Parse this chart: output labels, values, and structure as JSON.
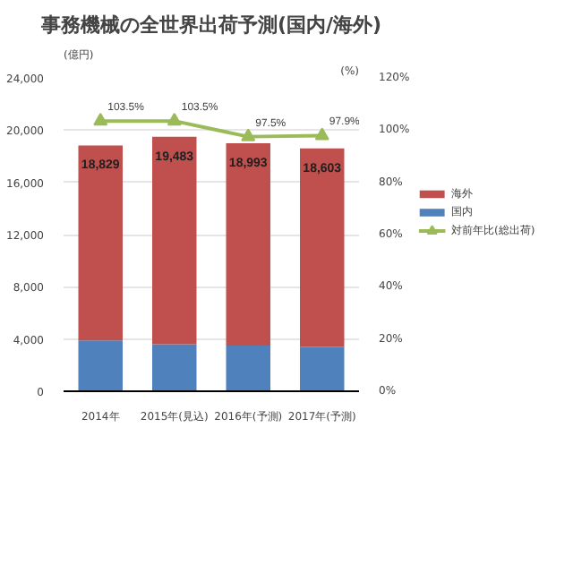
{
  "chart_data": {
    "type": "bar",
    "stacked": true,
    "title": "事務機械の全世界出荷予測(国内/海外)",
    "ylabel": "(億円)",
    "y2label": "(%)",
    "categories": [
      "2014年",
      "2015年(見込)",
      "2016年(予測)",
      "2017年(予測)"
    ],
    "series": [
      {
        "name": "国内",
        "color": "#4f81bd",
        "values": [
          3900,
          3600,
          3500,
          3400
        ]
      },
      {
        "name": "海外",
        "color": "#c0504d",
        "values": [
          14929,
          15883,
          15493,
          15203
        ]
      },
      {
        "name": "対前年比(総出荷)",
        "type": "line",
        "axis": "y2",
        "color": "#9bbb59",
        "marker": "triangle",
        "values": [
          103.5,
          103.5,
          97.5,
          97.9
        ],
        "value_labels": [
          "103.5%",
          "103.5%",
          "97.5%",
          "97.9%"
        ]
      }
    ],
    "totals": [
      "18,829",
      "19,483",
      "18,993",
      "18,603"
    ],
    "ylim": [
      0,
      24000
    ],
    "yticks": [
      {
        "value": 0,
        "label": "0"
      },
      {
        "value": 4000,
        "label": "4,000"
      },
      {
        "value": 8000,
        "label": "8,000"
      },
      {
        "value": 12000,
        "label": "12,000"
      },
      {
        "value": 16000,
        "label": "16,000"
      },
      {
        "value": 20000,
        "label": "20,000"
      },
      {
        "value": 24000,
        "label": "24,000"
      }
    ],
    "y2lim": [
      0,
      120
    ],
    "y2ticks": [
      {
        "value": 0,
        "label": "0%"
      },
      {
        "value": 20,
        "label": "20%"
      },
      {
        "value": 40,
        "label": "40%"
      },
      {
        "value": 60,
        "label": "60%"
      },
      {
        "value": 80,
        "label": "80%"
      },
      {
        "value": 100,
        "label": "100%"
      },
      {
        "value": 120,
        "label": "120%"
      }
    ],
    "grid": "y",
    "legend": "right"
  }
}
